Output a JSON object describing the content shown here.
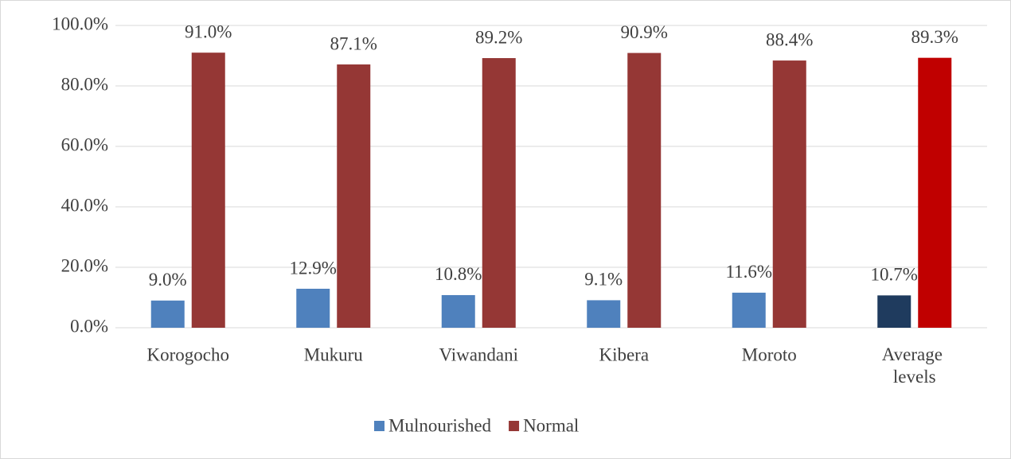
{
  "chart_data": {
    "type": "bar",
    "categories": [
      "Korogocho",
      "Mukuru",
      "Viwandani",
      "Kibera",
      "Moroto",
      "Average levels"
    ],
    "series": [
      {
        "name": "Mulnourished",
        "color": "#4f81bd",
        "colors": [
          "#4f81bd",
          "#4f81bd",
          "#4f81bd",
          "#4f81bd",
          "#4f81bd",
          "#1f3b5e"
        ],
        "values": [
          9.0,
          12.9,
          10.8,
          9.1,
          11.6,
          10.7
        ],
        "value_labels": [
          "9.0%",
          "12.9%",
          "10.8%",
          "9.1%",
          "11.6%",
          "10.7%"
        ]
      },
      {
        "name": "Normal",
        "color": "#953735",
        "colors": [
          "#953735",
          "#953735",
          "#953735",
          "#953735",
          "#953735",
          "#c00000"
        ],
        "values": [
          91.0,
          87.1,
          89.2,
          90.9,
          88.4,
          89.3
        ],
        "value_labels": [
          "91.0%",
          "87.1%",
          "89.2%",
          "90.9%",
          "88.4%",
          "89.3%"
        ]
      }
    ],
    "ylim": [
      0,
      100
    ],
    "yticks": [
      {
        "value": 0,
        "label": "0.0%"
      },
      {
        "value": 20,
        "label": "20.0%"
      },
      {
        "value": 40,
        "label": "40.0%"
      },
      {
        "value": 60,
        "label": "60.0%"
      },
      {
        "value": 80,
        "label": "80.0%"
      },
      {
        "value": 100,
        "label": "100.0%"
      }
    ],
    "grid": true,
    "legend": "bottom"
  }
}
